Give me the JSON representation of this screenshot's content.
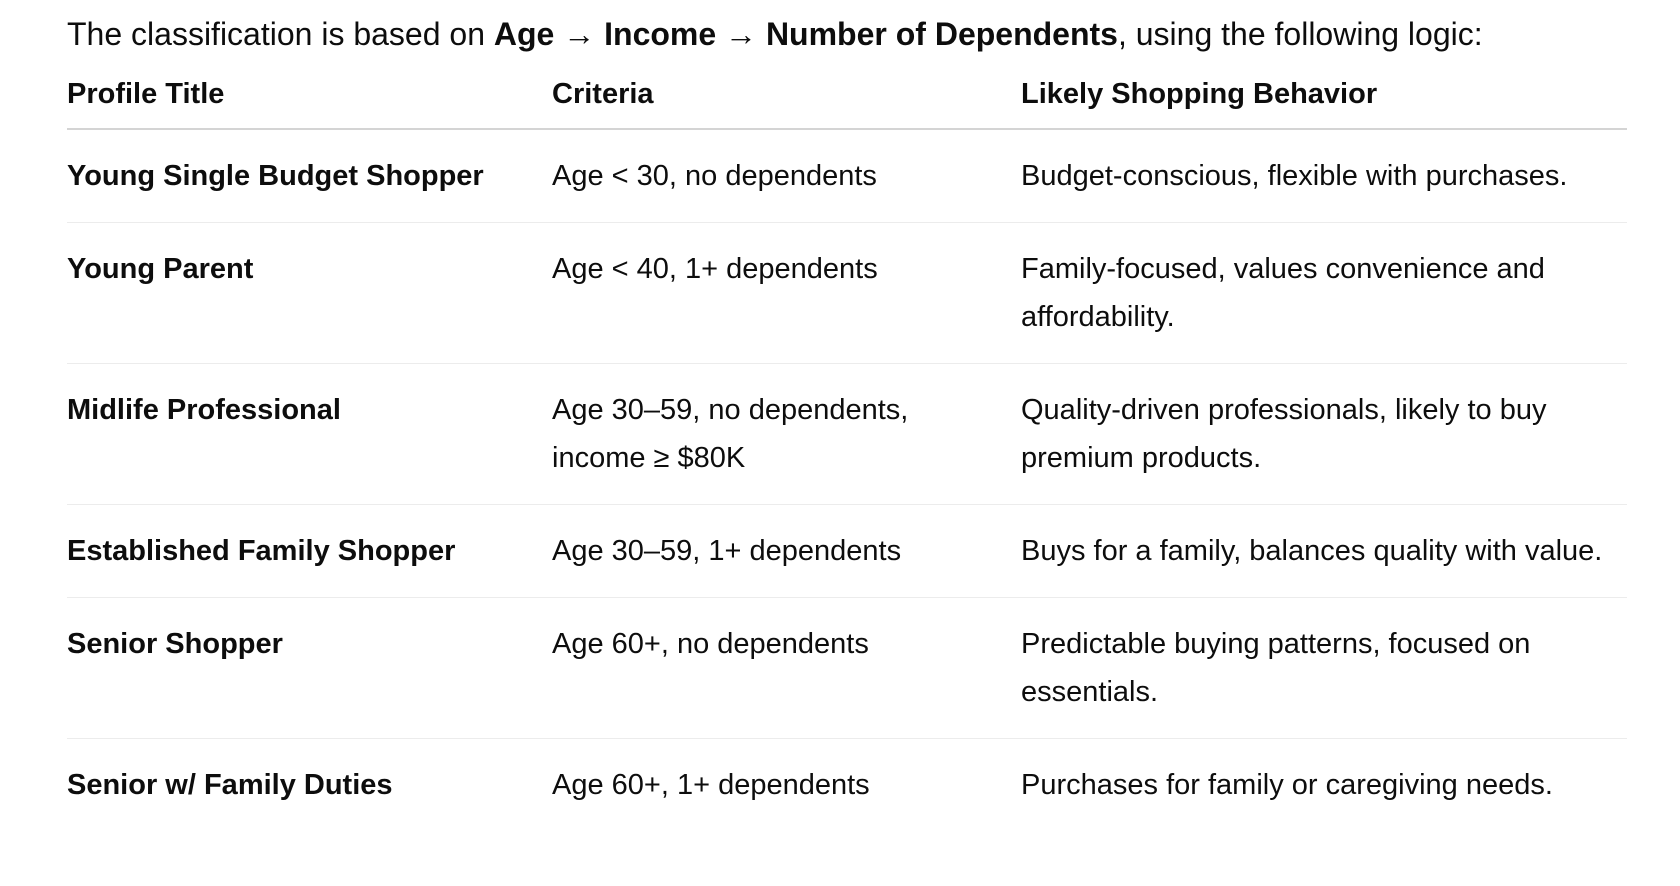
{
  "intro": {
    "prefix": "The classification is based on ",
    "emphasis": "Age → Income → Number of Dependents",
    "suffix": ", using the following logic:"
  },
  "table": {
    "headers": {
      "profile_title": "Profile Title",
      "criteria": "Criteria",
      "behavior": "Likely Shopping Behavior"
    },
    "rows": [
      {
        "profile_title": "Young Single Budget Shopper",
        "criteria": "Age < 30, no dependents",
        "behavior": "Budget-conscious, flexible with purchases."
      },
      {
        "profile_title": "Young Parent",
        "criteria": "Age < 40, 1+ dependents",
        "behavior": "Family-focused, values convenience and affordability."
      },
      {
        "profile_title": "Midlife Professional",
        "criteria": "Age 30–59, no dependents, income ≥ $80K",
        "behavior": "Quality-driven professionals, likely to buy premium products."
      },
      {
        "profile_title": "Established Family Shopper",
        "criteria": "Age 30–59, 1+ dependents",
        "behavior": "Buys for a family, balances quality with value."
      },
      {
        "profile_title": "Senior Shopper",
        "criteria": "Age 60+, no dependents",
        "behavior": "Predictable buying patterns, focused on essentials."
      },
      {
        "profile_title": "Senior w/ Family Duties",
        "criteria": "Age 60+, 1+ dependents",
        "behavior": "Purchases for family or caregiving needs."
      }
    ]
  }
}
